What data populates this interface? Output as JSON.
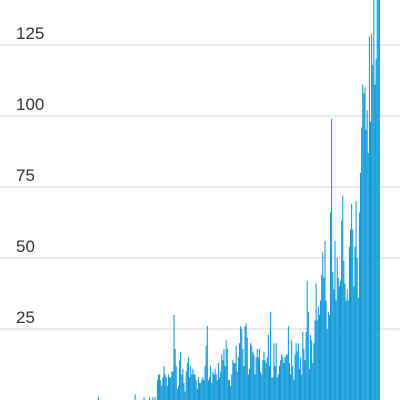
{
  "chart_data": {
    "type": "bar",
    "title": "",
    "xlabel": "",
    "ylabel": "",
    "ylim": [
      0,
      150
    ],
    "y_ticks": [
      25,
      50,
      75,
      100,
      125
    ],
    "y_tick_labels": [
      "25",
      "50",
      "75",
      "100",
      "125"
    ],
    "grid": true,
    "legend": "none",
    "bar_color": "#0a96d8",
    "values": [
      1,
      0,
      0,
      0,
      0,
      0,
      0,
      0,
      0,
      0,
      0,
      0,
      0,
      0,
      0,
      0,
      0,
      0,
      0,
      0,
      0,
      0,
      0,
      0,
      0,
      0,
      0,
      0,
      0,
      0,
      0,
      0,
      0,
      2,
      0,
      0,
      0,
      0,
      0,
      0,
      0,
      1,
      0,
      0,
      0,
      0,
      1,
      0,
      0,
      1,
      0,
      1,
      0,
      7,
      9,
      9,
      7,
      5,
      8,
      12,
      9,
      8,
      5,
      9,
      8,
      8,
      10,
      10,
      30,
      18,
      12,
      4,
      5,
      14,
      17,
      9,
      11,
      6,
      3,
      10,
      13,
      15,
      8,
      12,
      9,
      11,
      9,
      9,
      7,
      4,
      8,
      6,
      6,
      7,
      8,
      7,
      12,
      19,
      26,
      7,
      8,
      12,
      6,
      10,
      9,
      11,
      9,
      7,
      13,
      8,
      10,
      16,
      14,
      18,
      12,
      21,
      18,
      7,
      7,
      5,
      9,
      14,
      13,
      13,
      19,
      10,
      15,
      20,
      26,
      25,
      18,
      12,
      26,
      27,
      22,
      9,
      11,
      20,
      19,
      17,
      16,
      9,
      15,
      18,
      15,
      18,
      10,
      9,
      14,
      17,
      14,
      13,
      15,
      23,
      12,
      31,
      8,
      8,
      20,
      12,
      20,
      8,
      9,
      12,
      14,
      16,
      15,
      13,
      15,
      16,
      16,
      26,
      13,
      9,
      21,
      12,
      7,
      16,
      20,
      17,
      20,
      11,
      15,
      9,
      24,
      18,
      14,
      24,
      42,
      31,
      11,
      23,
      21,
      13,
      20,
      28,
      41,
      28,
      33,
      30,
      35,
      44,
      52,
      43,
      56,
      35,
      25,
      31,
      30,
      66,
      99,
      45,
      39,
      56,
      35,
      50,
      43,
      40,
      42,
      63,
      72,
      49,
      41,
      35,
      39,
      35,
      54,
      60,
      69,
      60,
      40,
      54,
      70,
      50,
      36,
      66,
      80,
      96,
      111,
      108,
      110,
      95,
      102,
      87,
      128,
      98,
      129,
      118,
      141,
      111,
      120,
      154,
      154,
      146
    ]
  }
}
